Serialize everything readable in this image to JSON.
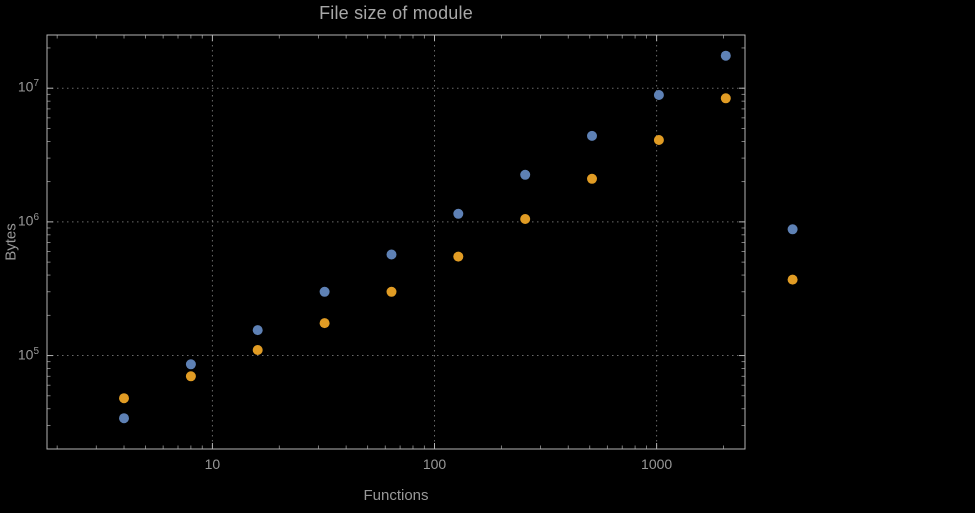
{
  "chart_data": {
    "type": "scatter",
    "title": "File size of module",
    "xlabel": "Functions",
    "ylabel": "Bytes",
    "x_scale": "log",
    "y_scale": "log",
    "grid": true,
    "xlim": [
      1.8,
      2500
    ],
    "ylim": [
      20000,
      25000000
    ],
    "x_ticks": [
      {
        "v": 10,
        "label": "10"
      },
      {
        "v": 100,
        "label": "100"
      },
      {
        "v": 1000,
        "label": "1000"
      }
    ],
    "y_ticks": [
      {
        "v": 100000,
        "mantissa": "10",
        "exp": "5"
      },
      {
        "v": 1000000,
        "mantissa": "10",
        "exp": "6"
      },
      {
        "v": 10000000,
        "mantissa": "10",
        "exp": "7"
      }
    ],
    "x": [
      4,
      8,
      16,
      32,
      64,
      128,
      256,
      512,
      1024,
      2048,
      4096
    ],
    "series": [
      {
        "name": "blue",
        "color": "#5E81B5",
        "values": [
          34000,
          86000,
          155000,
          300000,
          570000,
          1150000,
          2250000,
          4400000,
          8900000,
          17500000,
          880000
        ]
      },
      {
        "name": "orange",
        "color": "#E19C24",
        "values": [
          48000,
          70000,
          110000,
          175000,
          300000,
          550000,
          1050000,
          2100000,
          4100000,
          8400000,
          370000
        ]
      }
    ],
    "colors": {
      "background": "#000000",
      "frame": "#b5b5b5",
      "gridlines": "#6a6a6a",
      "text": "#989898",
      "series_blue": "#5E81B5",
      "series_orange": "#E19C24"
    }
  }
}
